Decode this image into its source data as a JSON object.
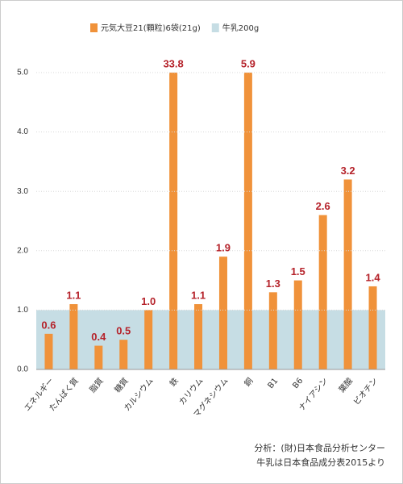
{
  "chart_data": {
    "type": "bar",
    "categories": [
      "エネルギー",
      "たんぱく質",
      "脂質",
      "糖質",
      "カルシウム",
      "鉄",
      "カリウム",
      "マグネシウム",
      "銅",
      "B1",
      "B6",
      "ナイアシン",
      "葉酸",
      "ビオチン"
    ],
    "series": [
      {
        "name": "元気大豆21(顆粒)6袋(21g)",
        "color": "#f0923a",
        "values": [
          0.6,
          1.1,
          0.4,
          0.5,
          1.0,
          33.8,
          1.1,
          1.9,
          5.9,
          1.3,
          1.5,
          2.6,
          3.2,
          1.4
        ],
        "value_labels": [
          "0.6",
          "1.1",
          "0.4",
          "0.5",
          "1.0",
          "33.8",
          "1.1",
          "1.9",
          "5.9",
          "1.3",
          "1.5",
          "2.6",
          "3.2",
          "1.4"
        ]
      },
      {
        "name": "牛乳200g",
        "color": "#c6dde4",
        "band_value": 1.0
      }
    ],
    "ylim": [
      0,
      5
    ],
    "yticks": [
      {
        "value": 0,
        "label": "0.0"
      },
      {
        "value": 1,
        "label": "1.0"
      },
      {
        "value": 2,
        "label": "2.0"
      },
      {
        "value": 3,
        "label": "3.0"
      },
      {
        "value": 4,
        "label": "4.0"
      },
      {
        "value": 5,
        "label": "5.0"
      }
    ],
    "grid": true,
    "notes": [
      "分析：(財)日本食品分析センター",
      "牛乳は日本食品成分表2015より"
    ]
  }
}
